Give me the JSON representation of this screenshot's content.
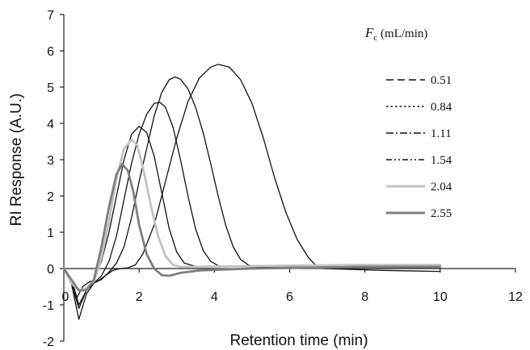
{
  "chart_data": {
    "type": "line",
    "title": "",
    "xlabel": "Retention time (min)",
    "ylabel": "RI Response (A.U.)",
    "xlim": [
      0,
      12
    ],
    "ylim": [
      -2,
      7
    ],
    "xticks": [
      0,
      2,
      4,
      6,
      8,
      10,
      12
    ],
    "yticks": [
      -2,
      -1,
      0,
      1,
      2,
      3,
      4,
      5,
      6,
      7
    ],
    "grid": false,
    "legend": {
      "title_italic": "F",
      "title_sub": "c",
      "title_rest": " (mL/min)",
      "placement": "top-right"
    },
    "series": [
      {
        "name": "0.51",
        "color": "#111111",
        "x": [
          0,
          0.2,
          0.35,
          0.5,
          0.7,
          0.9,
          1.1,
          1.3,
          1.5,
          1.7,
          1.9,
          2.1,
          2.4,
          2.7,
          3.0,
          3.3,
          3.6,
          3.9,
          4.1,
          4.4,
          4.7,
          5.0,
          5.3,
          5.6,
          5.9,
          6.2,
          6.5,
          6.7,
          6.9,
          7.5,
          8.5,
          10.0
        ],
        "y": [
          0.0,
          -0.3,
          -0.8,
          -0.5,
          -0.35,
          -0.35,
          -0.2,
          -0.05,
          0.0,
          0.02,
          0.1,
          0.4,
          1.2,
          2.4,
          3.6,
          4.6,
          5.25,
          5.55,
          5.63,
          5.55,
          5.2,
          4.55,
          3.6,
          2.5,
          1.55,
          0.8,
          0.3,
          0.08,
          0.0,
          -0.02,
          -0.05,
          -0.08
        ]
      },
      {
        "name": "0.84",
        "color": "#111111",
        "x": [
          0,
          0.2,
          0.4,
          0.6,
          0.8,
          1.0,
          1.2,
          1.4,
          1.6,
          1.8,
          2.0,
          2.2,
          2.4,
          2.6,
          2.8,
          2.95,
          3.1,
          3.3,
          3.5,
          3.7,
          3.9,
          4.1,
          4.3,
          4.5,
          4.7,
          4.9,
          5.2,
          6.0,
          8.0,
          10.0
        ],
        "y": [
          0.0,
          -0.4,
          -1.1,
          -0.6,
          -0.4,
          -0.3,
          -0.1,
          0.15,
          0.6,
          1.4,
          2.4,
          3.3,
          4.2,
          4.85,
          5.2,
          5.28,
          5.22,
          4.95,
          4.45,
          3.75,
          2.9,
          2.0,
          1.2,
          0.6,
          0.25,
          0.1,
          0.04,
          0.03,
          0.03,
          0.03
        ]
      },
      {
        "name": "1.11",
        "color": "#111111",
        "x": [
          0,
          0.2,
          0.4,
          0.6,
          0.8,
          1.0,
          1.2,
          1.4,
          1.6,
          1.8,
          2.0,
          2.2,
          2.4,
          2.55,
          2.7,
          2.9,
          3.1,
          3.3,
          3.5,
          3.7,
          3.9,
          4.1,
          4.5,
          6.0,
          8.0,
          10.0
        ],
        "y": [
          0.0,
          -0.4,
          -1.4,
          -0.7,
          -0.4,
          -0.2,
          0.2,
          0.9,
          1.9,
          2.9,
          3.7,
          4.25,
          4.55,
          4.58,
          4.45,
          3.9,
          3.0,
          2.0,
          1.1,
          0.5,
          0.2,
          0.08,
          0.05,
          0.05,
          0.06,
          0.06
        ]
      },
      {
        "name": "1.54",
        "color": "#111111",
        "x": [
          0,
          0.2,
          0.4,
          0.6,
          0.8,
          1.0,
          1.2,
          1.4,
          1.6,
          1.8,
          2.0,
          2.2,
          2.4,
          2.6,
          2.8,
          3.0,
          3.2,
          3.5,
          4.0,
          6.0,
          8.0,
          10.0
        ],
        "y": [
          0.0,
          -0.3,
          -1.0,
          -0.6,
          -0.3,
          0.2,
          1.0,
          2.0,
          3.0,
          3.7,
          3.92,
          3.75,
          3.1,
          2.1,
          1.1,
          0.45,
          0.15,
          0.06,
          0.05,
          0.06,
          0.08,
          0.08
        ]
      },
      {
        "name": "2.04",
        "color": "#c2c2c2",
        "x": [
          0,
          0.2,
          0.4,
          0.6,
          0.8,
          1.0,
          1.2,
          1.4,
          1.6,
          1.8,
          1.95,
          2.1,
          2.3,
          2.5,
          2.7,
          2.9,
          3.1,
          3.5,
          5.0,
          8.0,
          10.0
        ],
        "y": [
          0.0,
          -0.4,
          -0.6,
          -0.55,
          -0.35,
          0.3,
          1.3,
          2.5,
          3.3,
          3.55,
          3.4,
          2.8,
          1.8,
          0.9,
          0.35,
          0.1,
          0.05,
          0.05,
          0.07,
          0.1,
          0.1
        ]
      },
      {
        "name": "2.55",
        "color": "#7f7f7f",
        "x": [
          0,
          0.2,
          0.4,
          0.6,
          0.8,
          1.0,
          1.2,
          1.4,
          1.55,
          1.7,
          1.85,
          2.0,
          2.2,
          2.4,
          2.6,
          2.8,
          3.1,
          3.6,
          5.0,
          8.0,
          10.0
        ],
        "y": [
          0.0,
          -0.3,
          -0.6,
          -0.6,
          -0.3,
          0.6,
          1.7,
          2.6,
          2.88,
          2.7,
          2.1,
          1.2,
          0.4,
          0.0,
          -0.18,
          -0.2,
          -0.12,
          -0.05,
          0.0,
          0.05,
          0.05
        ]
      }
    ]
  }
}
